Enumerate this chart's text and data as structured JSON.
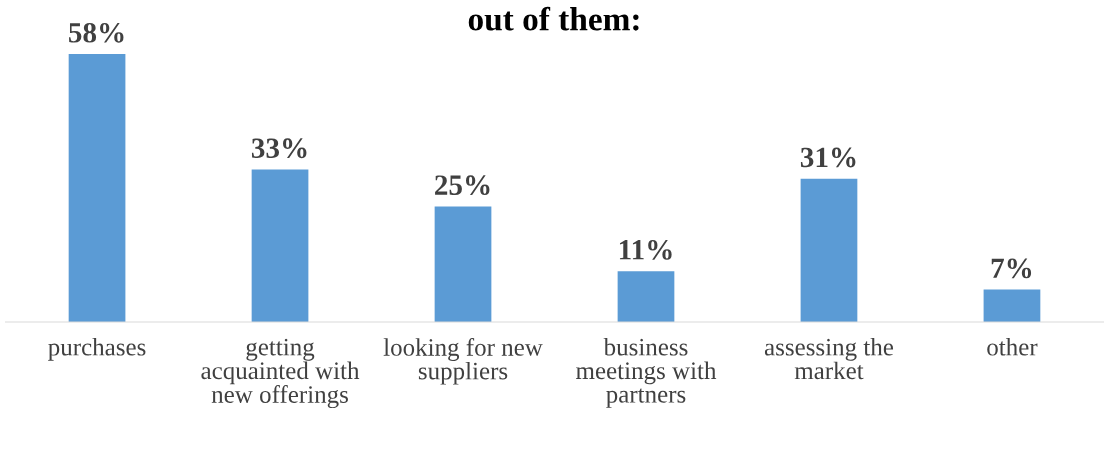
{
  "chart_data": {
    "type": "bar",
    "title": "out of them:",
    "categories": [
      "purchases",
      "getting acquainted with new offerings",
      "looking for new suppliers",
      "business meetings with partners",
      "assessing the market",
      "other"
    ],
    "values": [
      58,
      33,
      25,
      11,
      31,
      7
    ],
    "value_labels": [
      "58%",
      "33%",
      "25%",
      "11%",
      "31%",
      "7%"
    ],
    "color": "#5b9bd5",
    "grid": false,
    "legend": false
  }
}
